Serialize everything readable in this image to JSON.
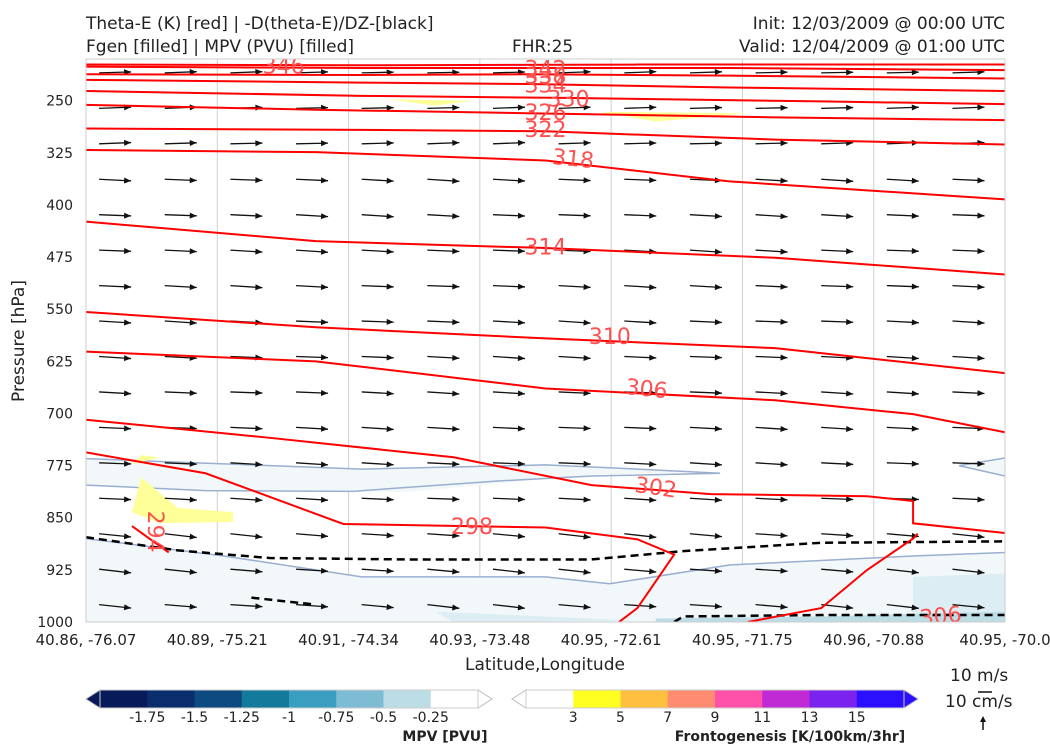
{
  "header": {
    "title_left_1": "Theta-E (K) [red] | -D(theta-E)/DZ-[black]",
    "title_left_2": "Fgen [filled] | MPV (PVU) [filled]",
    "fhr": "FHR:25",
    "init": "Init: 12/03/2009 @ 00:00 UTC",
    "valid": "Valid: 12/04/2009 @ 01:00 UTC"
  },
  "chart_data": {
    "type": "cross-section",
    "xlabel": "Latitude,Longitude",
    "ylabel": "Pressure [hPa]",
    "x_ticks": [
      "40.86, -76.07",
      "40.89, -75.21",
      "40.91, -74.34",
      "40.93, -73.48",
      "40.95, -72.61",
      "40.95, -71.75",
      "40.96, -70.88",
      "40.95, -70.0"
    ],
    "y_ticks": [
      250,
      325,
      400,
      475,
      550,
      625,
      700,
      775,
      850,
      925,
      1000
    ],
    "ylim": [
      1000,
      190
    ],
    "theta_e_contours": [
      {
        "label": "346",
        "points": [
          [
            0,
            198
          ],
          [
            0.3,
            199
          ],
          [
            0.6,
            198
          ],
          [
            1,
            198
          ]
        ]
      },
      {
        "label": "342",
        "points": [
          [
            0,
            201
          ],
          [
            0.3,
            203
          ],
          [
            0.48,
            203
          ],
          [
            0.7,
            203
          ],
          [
            1,
            206
          ]
        ]
      },
      {
        "label": "338",
        "points": [
          [
            0,
            212
          ],
          [
            0.3,
            213
          ],
          [
            0.48,
            212
          ],
          [
            0.7,
            214
          ],
          [
            1,
            218
          ]
        ]
      },
      {
        "label": "334",
        "points": [
          [
            0,
            220
          ],
          [
            0.3,
            224
          ],
          [
            0.48,
            226
          ],
          [
            0.7,
            231
          ],
          [
            1,
            236
          ]
        ]
      },
      {
        "label": "330",
        "points": [
          [
            0,
            236
          ],
          [
            0.3,
            243
          ],
          [
            0.52,
            246
          ],
          [
            0.8,
            251
          ],
          [
            1,
            255
          ]
        ]
      },
      {
        "label": "326",
        "points": [
          [
            0,
            256
          ],
          [
            0.25,
            263
          ],
          [
            0.48,
            268
          ],
          [
            0.75,
            274
          ],
          [
            1,
            278
          ]
        ]
      },
      {
        "label": "322",
        "points": [
          [
            0,
            290
          ],
          [
            0.3,
            292
          ],
          [
            0.5,
            294
          ],
          [
            0.75,
            306
          ],
          [
            1,
            313
          ]
        ]
      },
      {
        "label": "318",
        "points": [
          [
            0,
            321
          ],
          [
            0.25,
            324
          ],
          [
            0.5,
            336
          ],
          [
            0.7,
            366
          ],
          [
            1,
            392
          ]
        ]
      },
      {
        "label": "314",
        "points": [
          [
            0,
            424
          ],
          [
            0.25,
            452
          ],
          [
            0.5,
            462
          ],
          [
            0.75,
            476
          ],
          [
            1,
            500
          ]
        ]
      },
      {
        "label": "310",
        "points": [
          [
            0,
            554
          ],
          [
            0.25,
            576
          ],
          [
            0.5,
            592
          ],
          [
            0.75,
            606
          ],
          [
            1,
            642
          ]
        ]
      },
      {
        "label": "306",
        "points": [
          [
            0,
            611
          ],
          [
            0.25,
            625
          ],
          [
            0.5,
            664
          ],
          [
            0.75,
            681
          ],
          [
            0.9,
            701
          ],
          [
            1,
            727
          ]
        ]
      },
      {
        "label": "302",
        "points": [
          [
            0,
            709
          ],
          [
            0.2,
            735
          ],
          [
            0.4,
            763
          ],
          [
            0.55,
            803
          ],
          [
            0.68,
            816
          ],
          [
            0.85,
            819
          ],
          [
            0.9,
            826
          ],
          [
            0.9,
            858
          ],
          [
            1,
            872
          ]
        ]
      },
      {
        "label": "298",
        "points": [
          [
            0,
            756
          ],
          [
            0.13,
            786
          ],
          [
            0.28,
            859
          ],
          [
            0.5,
            864
          ],
          [
            0.6,
            881
          ],
          [
            0.64,
            903
          ],
          [
            0.6,
            980
          ],
          [
            0.58,
            1000
          ]
        ]
      },
      {
        "label": "294",
        "points": [
          [
            0.05,
            862
          ],
          [
            0.09,
            900
          ]
        ]
      },
      {
        "label": "306",
        "points": [
          [
            0.72,
            1000
          ],
          [
            0.8,
            980
          ],
          [
            0.85,
            925
          ],
          [
            0.9,
            880
          ],
          [
            0.905,
            873
          ]
        ]
      }
    ],
    "mpv_colorbar": {
      "title": "MPV [PVU]",
      "levels": [
        -1.75,
        -1.5,
        -1.25,
        -1.0,
        -0.75,
        -0.5,
        -0.25
      ],
      "colors": [
        "#081a5a",
        "#0a2d6e",
        "#0c4a80",
        "#147a9c",
        "#3a9ec0",
        "#7ebcd4",
        "#bcdce6",
        "#ffffff"
      ]
    },
    "fgen_colorbar": {
      "title": "Frontogenesis [K/100km/3hr]",
      "levels": [
        3,
        5,
        7,
        9,
        11,
        13,
        15
      ],
      "colors": [
        "#ffffff",
        "#ffff22",
        "#ffbf40",
        "#ff8c70",
        "#ff50aa",
        "#c02ad4",
        "#7a22ee",
        "#2a10ff"
      ]
    },
    "vector_scale": {
      "u": "10 m/s",
      "w": "10 cm/s"
    }
  }
}
